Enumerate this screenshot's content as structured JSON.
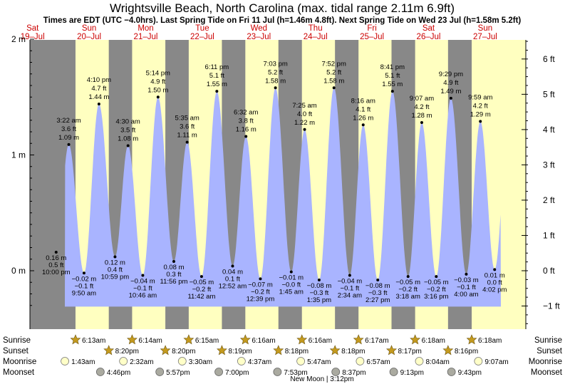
{
  "header": {
    "title": "Wrightsville Beach, North Carolina (max. tidal range 2.11m 6.9ft)",
    "subtitle": "Times are EDT (UTC −4.0hrs). Last Spring Tide on Fri 11 Jul (h=1.46m 4.8ft). Next Spring Tide on Wed 23 Jul (h=1.58m 5.2ft)"
  },
  "colors": {
    "night": "#888888",
    "day": "#ffffc0",
    "tide_fill": "#a9b4ff",
    "day_label": "#cc0000",
    "sun_star": "#c49a1e",
    "moonrise": "#ffffc8",
    "moonset": "#aaaaa0"
  },
  "chart_data": {
    "type": "area",
    "title": "Wrightsville Beach, North Carolina (max. tidal range 2.11m 6.9ft)",
    "days": [
      {
        "dow": "Sat",
        "date": "19–Jul"
      },
      {
        "dow": "Sun",
        "date": "20–Jul"
      },
      {
        "dow": "Mon",
        "date": "21–Jul"
      },
      {
        "dow": "Tue",
        "date": "22–Jul"
      },
      {
        "dow": "Wed",
        "date": "23–Jul"
      },
      {
        "dow": "Thu",
        "date": "24–Jul"
      },
      {
        "dow": "Fri",
        "date": "25–Jul"
      },
      {
        "dow": "Sat",
        "date": "26–Jul"
      },
      {
        "dow": "Sun",
        "date": "27–Jul"
      }
    ],
    "y_left": {
      "unit": "m",
      "range": [
        -0.5,
        2.0
      ],
      "ticks": [
        {
          "v": 2,
          "label": "2 m"
        },
        {
          "v": 1,
          "label": "1 m"
        },
        {
          "v": 0,
          "label": "0 m"
        }
      ]
    },
    "y_right": {
      "unit": "ft",
      "ticks": [
        {
          "v": 6,
          "label": "6 ft"
        },
        {
          "v": 5,
          "label": "5 ft"
        },
        {
          "v": 4,
          "label": "4 ft"
        },
        {
          "v": 3,
          "label": "3 ft"
        },
        {
          "v": 2,
          "label": "2 ft"
        },
        {
          "v": 1,
          "label": "1 ft"
        },
        {
          "v": 0,
          "label": "0 ft"
        },
        {
          "v": -1,
          "label": "−1 ft"
        }
      ]
    },
    "tides": [
      {
        "time": "10:00 pm",
        "day": 0,
        "m": 0.16,
        "m_label": "0.16 m",
        "ft_label": "0.5 ft",
        "type": "low"
      },
      {
        "time": "3:22 am",
        "day": 1,
        "m": 1.09,
        "m_label": "1.09 m",
        "ft_label": "3.6 ft",
        "type": "high"
      },
      {
        "time": "9:50 am",
        "day": 1,
        "m": -0.02,
        "m_label": "−0.02 m",
        "ft_label": "−0.1 ft",
        "type": "low"
      },
      {
        "time": "4:10 pm",
        "day": 1,
        "m": 1.44,
        "m_label": "1.44 m",
        "ft_label": "4.7 ft",
        "type": "high"
      },
      {
        "time": "10:59 pm",
        "day": 1,
        "m": 0.12,
        "m_label": "0.12 m",
        "ft_label": "0.4 ft",
        "type": "low"
      },
      {
        "time": "4:30 am",
        "day": 2,
        "m": 1.08,
        "m_label": "1.08 m",
        "ft_label": "3.5 ft",
        "type": "high"
      },
      {
        "time": "10:46 am",
        "day": 2,
        "m": -0.04,
        "m_label": "−0.04 m",
        "ft_label": "−0.1 ft",
        "type": "low"
      },
      {
        "time": "5:14 pm",
        "day": 2,
        "m": 1.5,
        "m_label": "1.50 m",
        "ft_label": "4.9 ft",
        "type": "high"
      },
      {
        "time": "11:56 pm",
        "day": 2,
        "m": 0.08,
        "m_label": "0.08 m",
        "ft_label": "0.3 ft",
        "type": "low"
      },
      {
        "time": "5:35 am",
        "day": 3,
        "m": 1.11,
        "m_label": "1.11 m",
        "ft_label": "3.6 ft",
        "type": "high"
      },
      {
        "time": "11:42 am",
        "day": 3,
        "m": -0.05,
        "m_label": "−0.05 m",
        "ft_label": "−0.2 ft",
        "type": "low"
      },
      {
        "time": "6:11 pm",
        "day": 3,
        "m": 1.55,
        "m_label": "1.55 m",
        "ft_label": "5.1 ft",
        "type": "high"
      },
      {
        "time": "12:52 am",
        "day": 4,
        "m": 0.04,
        "m_label": "0.04 m",
        "ft_label": "0.1 ft",
        "type": "low"
      },
      {
        "time": "6:32 am",
        "day": 4,
        "m": 1.16,
        "m_label": "1.16 m",
        "ft_label": "3.8 ft",
        "type": "high"
      },
      {
        "time": "12:39 pm",
        "day": 4,
        "m": -0.07,
        "m_label": "−0.07 m",
        "ft_label": "−0.2 ft",
        "type": "low"
      },
      {
        "time": "7:03 pm",
        "day": 4,
        "m": 1.58,
        "m_label": "1.58 m",
        "ft_label": "5.2 ft",
        "type": "high"
      },
      {
        "time": "1:45 am",
        "day": 5,
        "m": -0.01,
        "m_label": "−0.01 m",
        "ft_label": "−0.0 ft",
        "type": "low"
      },
      {
        "time": "7:25 am",
        "day": 5,
        "m": 1.22,
        "m_label": "1.22 m",
        "ft_label": "4.0 ft",
        "type": "high"
      },
      {
        "time": "1:35 pm",
        "day": 5,
        "m": -0.08,
        "m_label": "−0.08 m",
        "ft_label": "−0.3 ft",
        "type": "low"
      },
      {
        "time": "7:52 pm",
        "day": 5,
        "m": 1.58,
        "m_label": "1.58 m",
        "ft_label": "5.2 ft",
        "type": "high"
      },
      {
        "time": "2:34 am",
        "day": 6,
        "m": -0.04,
        "m_label": "−0.04 m",
        "ft_label": "−0.1 ft",
        "type": "low"
      },
      {
        "time": "8:16 am",
        "day": 6,
        "m": 1.26,
        "m_label": "1.26 m",
        "ft_label": "4.1 ft",
        "type": "high"
      },
      {
        "time": "2:27 pm",
        "day": 6,
        "m": -0.08,
        "m_label": "−0.08 m",
        "ft_label": "−0.3 ft",
        "type": "low"
      },
      {
        "time": "8:41 pm",
        "day": 6,
        "m": 1.55,
        "m_label": "1.55 m",
        "ft_label": "5.1 ft",
        "type": "high"
      },
      {
        "time": "3:18 am",
        "day": 7,
        "m": -0.05,
        "m_label": "−0.05 m",
        "ft_label": "−0.2 ft",
        "type": "low"
      },
      {
        "time": "9:07 am",
        "day": 7,
        "m": 1.28,
        "m_label": "1.28 m",
        "ft_label": "4.2 ft",
        "type": "high"
      },
      {
        "time": "3:16 pm",
        "day": 7,
        "m": -0.05,
        "m_label": "−0.05 m",
        "ft_label": "−0.2 ft",
        "type": "low"
      },
      {
        "time": "9:29 pm",
        "day": 7,
        "m": 1.49,
        "m_label": "1.49 m",
        "ft_label": "4.9 ft",
        "type": "high"
      },
      {
        "time": "4:00 am",
        "day": 8,
        "m": -0.03,
        "m_label": "−0.03 m",
        "ft_label": "−0.1 ft",
        "type": "low"
      },
      {
        "time": "9:59 am",
        "day": 8,
        "m": 1.29,
        "m_label": "1.29 m",
        "ft_label": "4.2 ft",
        "type": "high"
      },
      {
        "time": "4:02 pm",
        "day": 8,
        "m": 0.01,
        "m_label": "0.01 m",
        "ft_label": "0.0 ft",
        "type": "low"
      }
    ],
    "sunrise": [
      "6:13am",
      "6:14am",
      "6:15am",
      "6:16am",
      "6:16am",
      "6:17am",
      "6:18am",
      "6:18am"
    ],
    "sunset": [
      "8:20pm",
      "8:20pm",
      "8:19pm",
      "8:18pm",
      "8:18pm",
      "8:17pm",
      "8:16pm"
    ],
    "moonrise": [
      "1:43am",
      "2:32am",
      "3:30am",
      "4:37am",
      "5:47am",
      "6:57am",
      "8:04am",
      "9:07am"
    ],
    "moonset": [
      "4:46pm",
      "5:57pm",
      "7:00pm",
      "7:53pm",
      "8:37pm",
      "9:13pm",
      "9:43pm"
    ],
    "moon_phase": "New Moon | 3:12pm"
  },
  "rows": {
    "sunrise": "Sunrise",
    "sunset": "Sunset",
    "moonrise": "Moonrise",
    "moonset": "Moonset"
  }
}
